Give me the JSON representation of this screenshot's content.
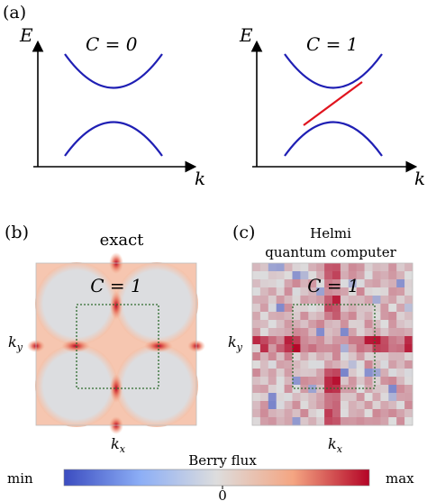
{
  "panels": {
    "a": {
      "label": "(a)",
      "left": {
        "y_label": "E",
        "x_label": "k",
        "annotation": "C = 0"
      },
      "right": {
        "y_label": "E",
        "x_label": "k",
        "annotation": "C = 1"
      }
    },
    "b": {
      "label": "(b)",
      "title": "exact",
      "annotation": "C = 1",
      "x_label": "kx",
      "y_label": "ky"
    },
    "c": {
      "label": "(c)",
      "title_line1": "Helmi",
      "title_line2": "quantum computer",
      "annotation": "C = 1",
      "x_label": "kx",
      "y_label": "ky"
    }
  },
  "colorbar": {
    "title": "Berry flux",
    "min_label": "min",
    "max_label": "max",
    "zero_label": "0",
    "colors": {
      "low": "#3b4cc0",
      "mid": "#dddddd",
      "high": "#b40426"
    }
  },
  "colors": {
    "band": "#1f1fb4",
    "edge_state": "#e0141e",
    "bz_box": "#2e6b2e"
  }
}
